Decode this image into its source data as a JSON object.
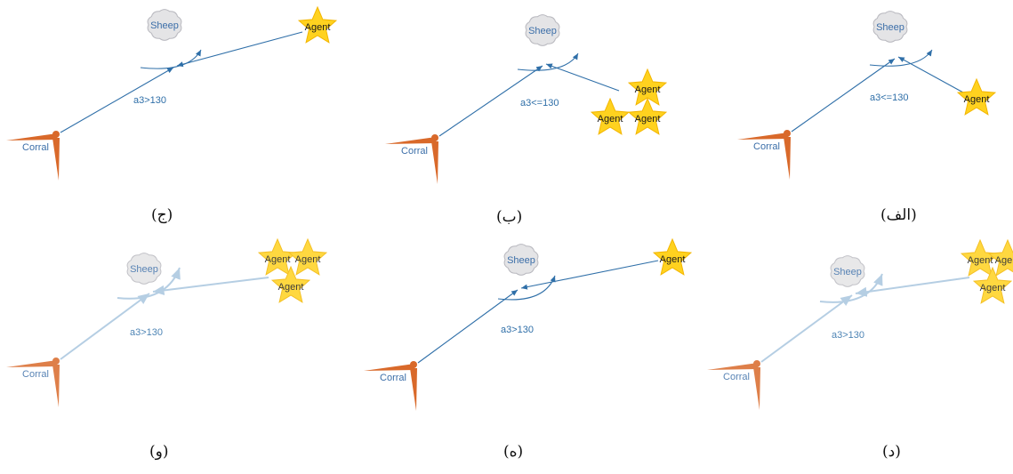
{
  "panels": [
    {
      "id": "alef",
      "caption": "(الف)",
      "angle_label": "a3<=130",
      "sheep_label": "Sheep",
      "corral_label": "Corral",
      "agent_label": "Agent",
      "agent_count": 1,
      "faded": false
    },
    {
      "id": "be",
      "caption": "(ب)",
      "angle_label": "a3<=130",
      "sheep_label": "Sheep",
      "corral_label": "Corral",
      "agent_label": "Agent",
      "agent_count": 3,
      "faded": false
    },
    {
      "id": "jim",
      "caption": "(ج)",
      "angle_label": "a3>130",
      "sheep_label": "Sheep",
      "corral_label": "Corral",
      "agent_label": "Agent",
      "agent_count": 1,
      "faded": false
    },
    {
      "id": "dal",
      "caption": "(د)",
      "angle_label": "a3>130",
      "sheep_label": "Sheep",
      "corral_label": "Corral",
      "agent_label": "Agent",
      "agent_count": 3,
      "faded": true
    },
    {
      "id": "he",
      "caption": "(ه)",
      "angle_label": "a3>130",
      "sheep_label": "Sheep",
      "corral_label": "Corral",
      "agent_label": "Agent",
      "agent_count": 1,
      "faded": false
    },
    {
      "id": "vav",
      "caption": "(و)",
      "angle_label": "a3>130",
      "sheep_label": "Sheep",
      "corral_label": "Corral",
      "agent_label": "Agent",
      "agent_count": 3,
      "faded": true
    }
  ],
  "colors": {
    "line": "#2f6fa8",
    "line_faded": "#a9c6df",
    "corral": "#d9692a",
    "sheep_fill": "#e4e4e6",
    "sheep_stroke": "#b9b9bf",
    "sheep_text": "#3b6ea8",
    "star_fill": "#ffd21f",
    "star_stroke": "#f3b600",
    "angle_text": "#2f6fa8"
  }
}
